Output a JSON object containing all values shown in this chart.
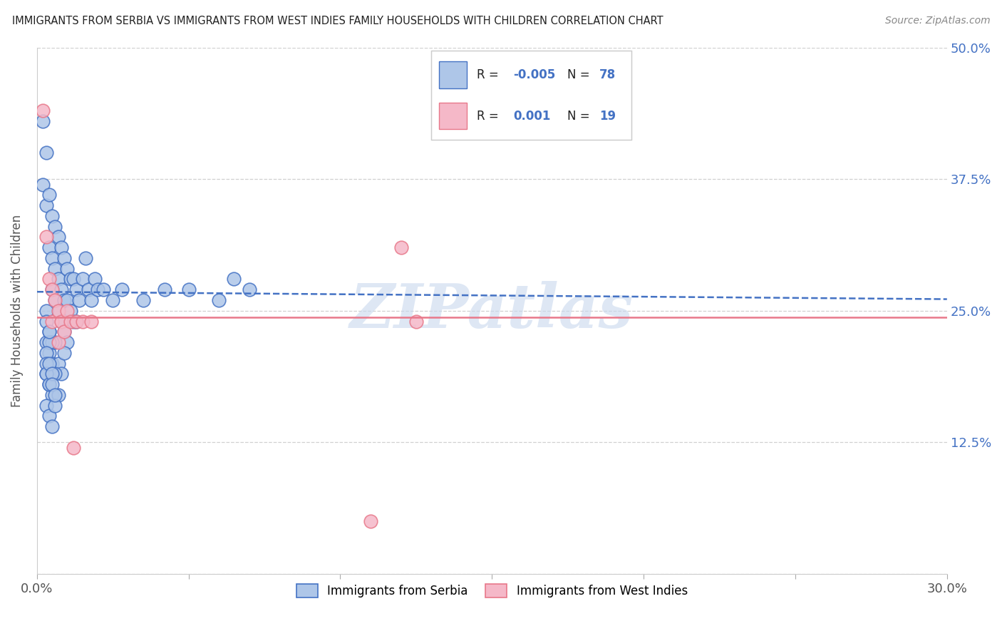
{
  "title": "IMMIGRANTS FROM SERBIA VS IMMIGRANTS FROM WEST INDIES FAMILY HOUSEHOLDS WITH CHILDREN CORRELATION CHART",
  "source": "Source: ZipAtlas.com",
  "ylabel": "Family Households with Children",
  "xlim": [
    0.0,
    0.3
  ],
  "ylim": [
    0.0,
    0.5
  ],
  "xtick_positions": [
    0.0,
    0.05,
    0.1,
    0.15,
    0.2,
    0.25,
    0.3
  ],
  "xtick_labels": [
    "0.0%",
    "",
    "",
    "",
    "",
    "",
    "30.0%"
  ],
  "ytick_positions": [
    0.0,
    0.125,
    0.25,
    0.375,
    0.5
  ],
  "ytick_labels_right": [
    "",
    "12.5%",
    "25.0%",
    "37.5%",
    "50.0%"
  ],
  "legend_r1_val": "-0.005",
  "legend_r1_n": "78",
  "legend_r2_val": "0.001",
  "legend_r2_n": "19",
  "color_serbia": "#aec6e8",
  "color_westindies": "#f5b8c8",
  "line_color_serbia": "#4472c4",
  "line_color_westindies": "#e8788a",
  "serbia_trend_y_start": 0.268,
  "serbia_trend_y_end": 0.261,
  "westindies_trend_y": 0.244,
  "serbia_x": [
    0.002,
    0.002,
    0.003,
    0.003,
    0.004,
    0.004,
    0.005,
    0.005,
    0.005,
    0.006,
    0.006,
    0.006,
    0.007,
    0.007,
    0.007,
    0.008,
    0.008,
    0.008,
    0.009,
    0.009,
    0.009,
    0.01,
    0.01,
    0.01,
    0.011,
    0.011,
    0.012,
    0.012,
    0.013,
    0.013,
    0.014,
    0.015,
    0.016,
    0.017,
    0.018,
    0.019,
    0.02,
    0.022,
    0.025,
    0.028,
    0.035,
    0.042,
    0.05,
    0.06,
    0.065,
    0.07,
    0.003,
    0.004,
    0.005,
    0.006,
    0.007,
    0.008,
    0.009,
    0.003,
    0.004,
    0.005,
    0.006,
    0.007,
    0.003,
    0.004,
    0.005,
    0.006,
    0.003,
    0.004,
    0.005,
    0.003,
    0.004,
    0.003,
    0.004,
    0.003,
    0.003,
    0.004,
    0.004,
    0.005,
    0.005,
    0.006
  ],
  "serbia_y": [
    0.43,
    0.37,
    0.4,
    0.35,
    0.36,
    0.31,
    0.34,
    0.3,
    0.27,
    0.33,
    0.29,
    0.26,
    0.32,
    0.28,
    0.25,
    0.31,
    0.27,
    0.24,
    0.3,
    0.26,
    0.23,
    0.29,
    0.26,
    0.22,
    0.28,
    0.25,
    0.28,
    0.24,
    0.27,
    0.24,
    0.26,
    0.28,
    0.3,
    0.27,
    0.26,
    0.28,
    0.27,
    0.27,
    0.26,
    0.27,
    0.26,
    0.27,
    0.27,
    0.26,
    0.28,
    0.27,
    0.22,
    0.21,
    0.2,
    0.22,
    0.2,
    0.19,
    0.21,
    0.19,
    0.18,
    0.17,
    0.19,
    0.17,
    0.16,
    0.15,
    0.14,
    0.16,
    0.25,
    0.23,
    0.22,
    0.24,
    0.22,
    0.21,
    0.23,
    0.2,
    0.19,
    0.18,
    0.2,
    0.19,
    0.18,
    0.17
  ],
  "westindies_x": [
    0.002,
    0.003,
    0.004,
    0.005,
    0.005,
    0.006,
    0.007,
    0.007,
    0.008,
    0.009,
    0.01,
    0.011,
    0.012,
    0.013,
    0.015,
    0.018,
    0.12,
    0.125,
    0.11
  ],
  "westindies_y": [
    0.44,
    0.32,
    0.28,
    0.27,
    0.24,
    0.26,
    0.25,
    0.22,
    0.24,
    0.23,
    0.25,
    0.24,
    0.12,
    0.24,
    0.24,
    0.24,
    0.31,
    0.24,
    0.05
  ],
  "watermark": "ZIPatlas",
  "background_color": "#ffffff",
  "grid_color": "#d0d0d0"
}
